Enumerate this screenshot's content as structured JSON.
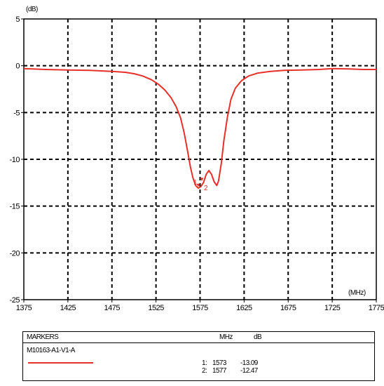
{
  "chart_data": {
    "type": "line",
    "ylabel": "(dB)",
    "xlabel": "(MHz)",
    "xlim": [
      1375,
      1775
    ],
    "ylim": [
      -25,
      5
    ],
    "x_ticks": [
      1375,
      1425,
      1475,
      1525,
      1575,
      1625,
      1675,
      1725,
      1775
    ],
    "y_ticks": [
      5,
      0,
      -5,
      -10,
      -15,
      -20,
      -25
    ],
    "grid": true,
    "series": [
      {
        "name": "M10163-A1-V1-A",
        "color": "#e8302a",
        "x": [
          1375,
          1400,
          1425,
          1450,
          1475,
          1490,
          1500,
          1510,
          1520,
          1528,
          1535,
          1542,
          1548,
          1553,
          1557,
          1561,
          1564,
          1567,
          1570,
          1573,
          1576,
          1579,
          1582,
          1585,
          1588,
          1591,
          1594,
          1596,
          1599,
          1602,
          1606,
          1610,
          1615,
          1622,
          1630,
          1640,
          1655,
          1670,
          1690,
          1710,
          1725,
          1745,
          1760,
          1775
        ],
        "y": [
          -0.3,
          -0.4,
          -0.45,
          -0.5,
          -0.6,
          -0.7,
          -0.85,
          -1.1,
          -1.5,
          -2.0,
          -2.6,
          -3.4,
          -4.4,
          -5.6,
          -7.2,
          -9.2,
          -10.8,
          -12.0,
          -12.8,
          -13.09,
          -12.9,
          -12.47,
          -11.6,
          -11.2,
          -11.6,
          -12.4,
          -12.8,
          -12.3,
          -10.5,
          -8.0,
          -5.5,
          -3.6,
          -2.4,
          -1.6,
          -1.1,
          -0.8,
          -0.6,
          -0.5,
          -0.45,
          -0.4,
          -0.3,
          -0.35,
          -0.4,
          -0.4
        ]
      }
    ],
    "markers": [
      {
        "id": "1",
        "x": 1573,
        "y": -13.09
      },
      {
        "id": "2",
        "x": 1577,
        "y": -12.47
      }
    ]
  },
  "marker_table": {
    "title": "MARKERS",
    "col_freq": "MHz",
    "col_db": "dB",
    "trace_name": "M10163-A1-V1-A",
    "trace_color": "#e8302a",
    "rows": [
      {
        "label": "1:",
        "freq": "1573",
        "db": "-13.09"
      },
      {
        "label": "2:",
        "freq": "1577",
        "db": "-12.47"
      }
    ]
  }
}
